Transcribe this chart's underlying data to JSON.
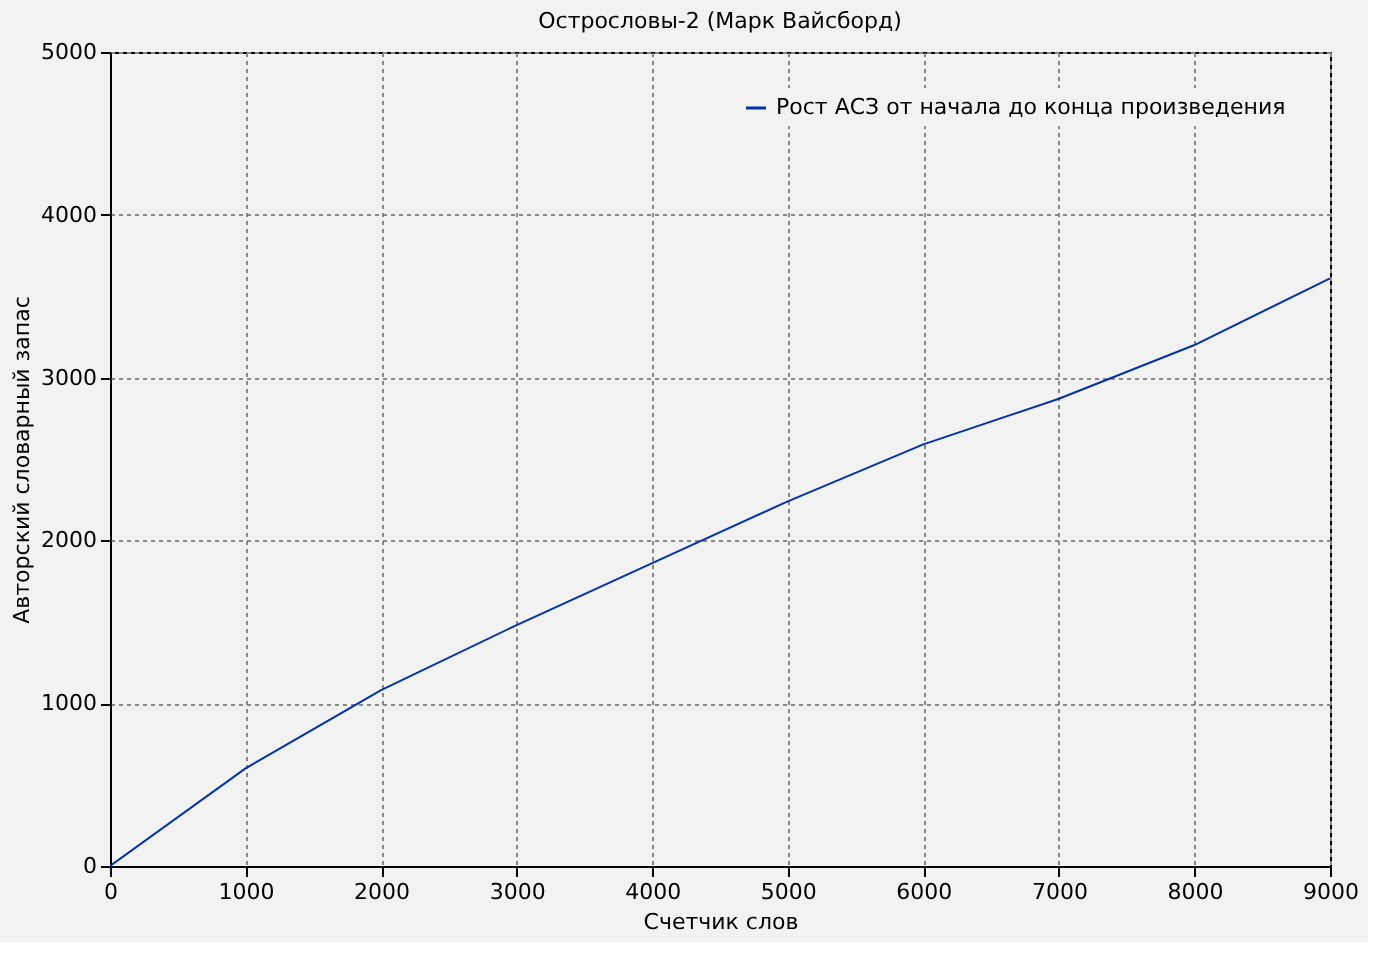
{
  "chart_data": {
    "type": "line",
    "title": "Острословы-2 (Марк Вайсборд)",
    "xlabel": "Счетчик слов",
    "ylabel": "Авторский словарный запас",
    "x": [
      0,
      1000,
      2000,
      3000,
      4000,
      5000,
      6000,
      7000,
      8000,
      9000
    ],
    "series": [
      {
        "name": "Рост АСЗ от начала до конца произведения",
        "color": "#0033aa",
        "values": [
          0,
          600,
          1080,
          1480,
          1860,
          2240,
          2590,
          2870,
          3200,
          3610
        ]
      }
    ],
    "xlim": [
      0,
      9000
    ],
    "ylim": [
      0,
      5000
    ],
    "xticks": [
      0,
      1000,
      2000,
      3000,
      4000,
      5000,
      6000,
      7000,
      8000,
      9000
    ],
    "yticks": [
      0,
      1000,
      2000,
      3000,
      4000,
      5000
    ],
    "grid": true,
    "legend": "top right",
    "marker": "none",
    "line_style": "solid"
  }
}
